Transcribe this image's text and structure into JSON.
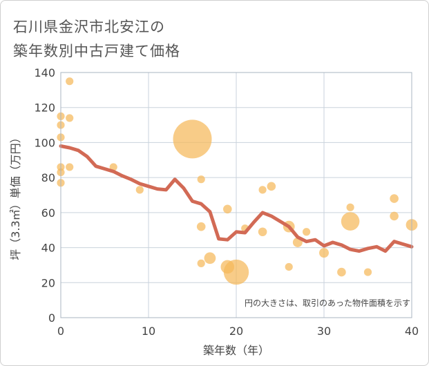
{
  "chart_data": {
    "type": "scatter",
    "title_lines": [
      "石川県金沢市北安江の",
      "築年数別中古戸建て価格"
    ],
    "xlabel": "築年数（年）",
    "ylabel": "坪（3.3㎡）単価（万円）",
    "note": "円の大きさは、取引のあった物件面積を示す",
    "xlim": [
      0,
      40
    ],
    "ylim": [
      0,
      140
    ],
    "x_ticks": [
      0,
      10,
      20,
      30,
      40
    ],
    "y_ticks": [
      0,
      20,
      40,
      60,
      80,
      100,
      120,
      140
    ],
    "grid": true,
    "colors": {
      "bubble": "#f5b95a",
      "line": "#d26a55",
      "grid": "#c9d2dc",
      "frame": "#aab4c0"
    },
    "bubbles": [
      {
        "x": 0,
        "y": 115,
        "size": 8
      },
      {
        "x": 0,
        "y": 110,
        "size": 8
      },
      {
        "x": 0,
        "y": 103,
        "size": 8
      },
      {
        "x": 0,
        "y": 86,
        "size": 8
      },
      {
        "x": 0,
        "y": 83,
        "size": 8
      },
      {
        "x": 0,
        "y": 77,
        "size": 8
      },
      {
        "x": 1,
        "y": 135,
        "size": 8
      },
      {
        "x": 1,
        "y": 114,
        "size": 8
      },
      {
        "x": 1,
        "y": 86,
        "size": 8
      },
      {
        "x": 6,
        "y": 86,
        "size": 8
      },
      {
        "x": 9,
        "y": 73,
        "size": 8
      },
      {
        "x": 15,
        "y": 102,
        "size": 40
      },
      {
        "x": 16,
        "y": 79,
        "size": 8
      },
      {
        "x": 16,
        "y": 52,
        "size": 9
      },
      {
        "x": 16,
        "y": 31,
        "size": 8
      },
      {
        "x": 17,
        "y": 34,
        "size": 12
      },
      {
        "x": 19,
        "y": 62,
        "size": 9
      },
      {
        "x": 19,
        "y": 29,
        "size": 14
      },
      {
        "x": 20,
        "y": 26,
        "size": 26
      },
      {
        "x": 21,
        "y": 51,
        "size": 8
      },
      {
        "x": 23,
        "y": 73,
        "size": 8
      },
      {
        "x": 23,
        "y": 49,
        "size": 9
      },
      {
        "x": 24,
        "y": 75,
        "size": 9
      },
      {
        "x": 26,
        "y": 52,
        "size": 12
      },
      {
        "x": 26,
        "y": 29,
        "size": 8
      },
      {
        "x": 27,
        "y": 43,
        "size": 10
      },
      {
        "x": 28,
        "y": 49,
        "size": 8
      },
      {
        "x": 30,
        "y": 37,
        "size": 10
      },
      {
        "x": 32,
        "y": 26,
        "size": 9
      },
      {
        "x": 33,
        "y": 63,
        "size": 8
      },
      {
        "x": 33,
        "y": 55,
        "size": 19
      },
      {
        "x": 35,
        "y": 26,
        "size": 8
      },
      {
        "x": 38,
        "y": 68,
        "size": 9
      },
      {
        "x": 38,
        "y": 58,
        "size": 9
      },
      {
        "x": 40,
        "y": 53,
        "size": 12
      }
    ],
    "trend": {
      "x": [
        0,
        1,
        2,
        3,
        4,
        5,
        6,
        7,
        8,
        9,
        10,
        11,
        12,
        13,
        14,
        15,
        16,
        17,
        18,
        19,
        20,
        21,
        22,
        23,
        24,
        25,
        26,
        27,
        28,
        29,
        30,
        31,
        32,
        33,
        34,
        35,
        36,
        37,
        38,
        39,
        40
      ],
      "y": [
        98,
        97,
        95.5,
        92,
        86.5,
        85,
        83.5,
        81,
        79,
        76.5,
        75,
        73.5,
        73,
        79,
        74,
        66.5,
        65,
        60.5,
        45,
        44.5,
        49,
        48.5,
        54.5,
        60,
        58,
        55,
        52,
        46,
        43.5,
        44.5,
        41,
        43,
        41.5,
        39,
        38,
        39.5,
        40.5,
        38,
        43.5,
        42,
        40.5
      ]
    }
  }
}
